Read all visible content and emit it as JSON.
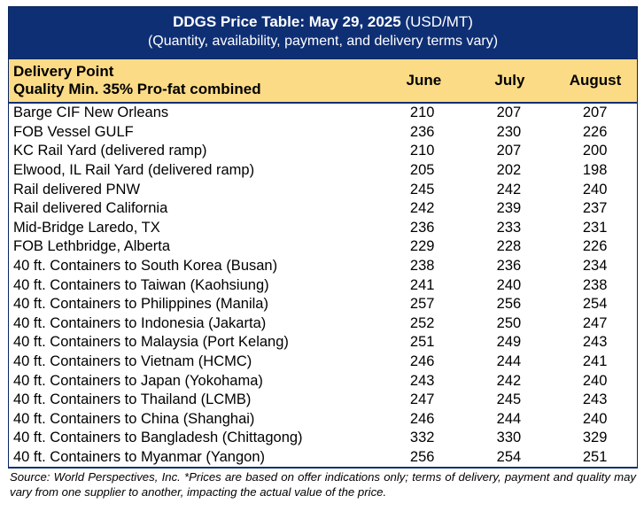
{
  "title": {
    "bold": "DDGS Price Table: May 29, 2025",
    "unit": " (USD/MT)",
    "subtitle": "(Quantity, availability, payment, and delivery terms vary)"
  },
  "header": {
    "delivery_point": "Delivery Point",
    "quality": "Quality Min. 35% Pro-fat combined",
    "columns": [
      "June",
      "July",
      "August"
    ]
  },
  "rows": [
    {
      "name": "Barge CIF New Orleans",
      "june": "210",
      "july": "207",
      "august": "207"
    },
    {
      "name": "FOB Vessel GULF",
      "june": "236",
      "july": "230",
      "august": "226"
    },
    {
      "name": "KC Rail Yard (delivered ramp)",
      "june": "210",
      "july": "207",
      "august": "200"
    },
    {
      "name": "Elwood, IL Rail Yard (delivered ramp)",
      "june": "205",
      "july": "202",
      "august": "198"
    },
    {
      "name": "Rail delivered PNW",
      "june": "245",
      "july": "242",
      "august": "240"
    },
    {
      "name": "Rail delivered California",
      "june": "242",
      "july": "239",
      "august": "237"
    },
    {
      "name": "Mid-Bridge Laredo, TX",
      "june": "236",
      "july": "233",
      "august": "231"
    },
    {
      "name": "FOB Lethbridge, Alberta",
      "june": "229",
      "july": "228",
      "august": "226"
    },
    {
      "name": "40 ft. Containers to South Korea (Busan)",
      "june": "238",
      "july": "236",
      "august": "234"
    },
    {
      "name": "40 ft. Containers to Taiwan (Kaohsiung)",
      "june": "241",
      "july": "240",
      "august": "238"
    },
    {
      "name": "40 ft. Containers to Philippines (Manila)",
      "june": "257",
      "july": "256",
      "august": "254"
    },
    {
      "name": "40 ft. Containers to Indonesia (Jakarta)",
      "june": "252",
      "july": "250",
      "august": "247"
    },
    {
      "name": "40 ft. Containers to Malaysia (Port Kelang)",
      "june": "251",
      "july": "249",
      "august": "243"
    },
    {
      "name": "40 ft. Containers to Vietnam (HCMC)",
      "june": "246",
      "july": "244",
      "august": "241"
    },
    {
      "name": "40 ft. Containers to Japan (Yokohama)",
      "june": "243",
      "july": "242",
      "august": "240"
    },
    {
      "name": "40 ft. Containers to Thailand (LCMB)",
      "june": "247",
      "july": "245",
      "august": "243"
    },
    {
      "name": "40 ft. Containers to China (Shanghai)",
      "june": "246",
      "july": "244",
      "august": "240"
    },
    {
      "name": "40 ft. Containers to Bangladesh (Chittagong)",
      "june": "332",
      "july": "330",
      "august": "329"
    },
    {
      "name": "40 ft. Containers to Myanmar (Yangon)",
      "june": "256",
      "july": "254",
      "august": "251"
    }
  ],
  "footnote": "Source: World Perspectives, Inc. *Prices are based on offer indications only; terms of delivery, payment and quality may vary from one supplier to another, impacting the actual value of the price.",
  "colors": {
    "title_bg": "#0f2f74",
    "header_bg": "#fcdb86"
  }
}
